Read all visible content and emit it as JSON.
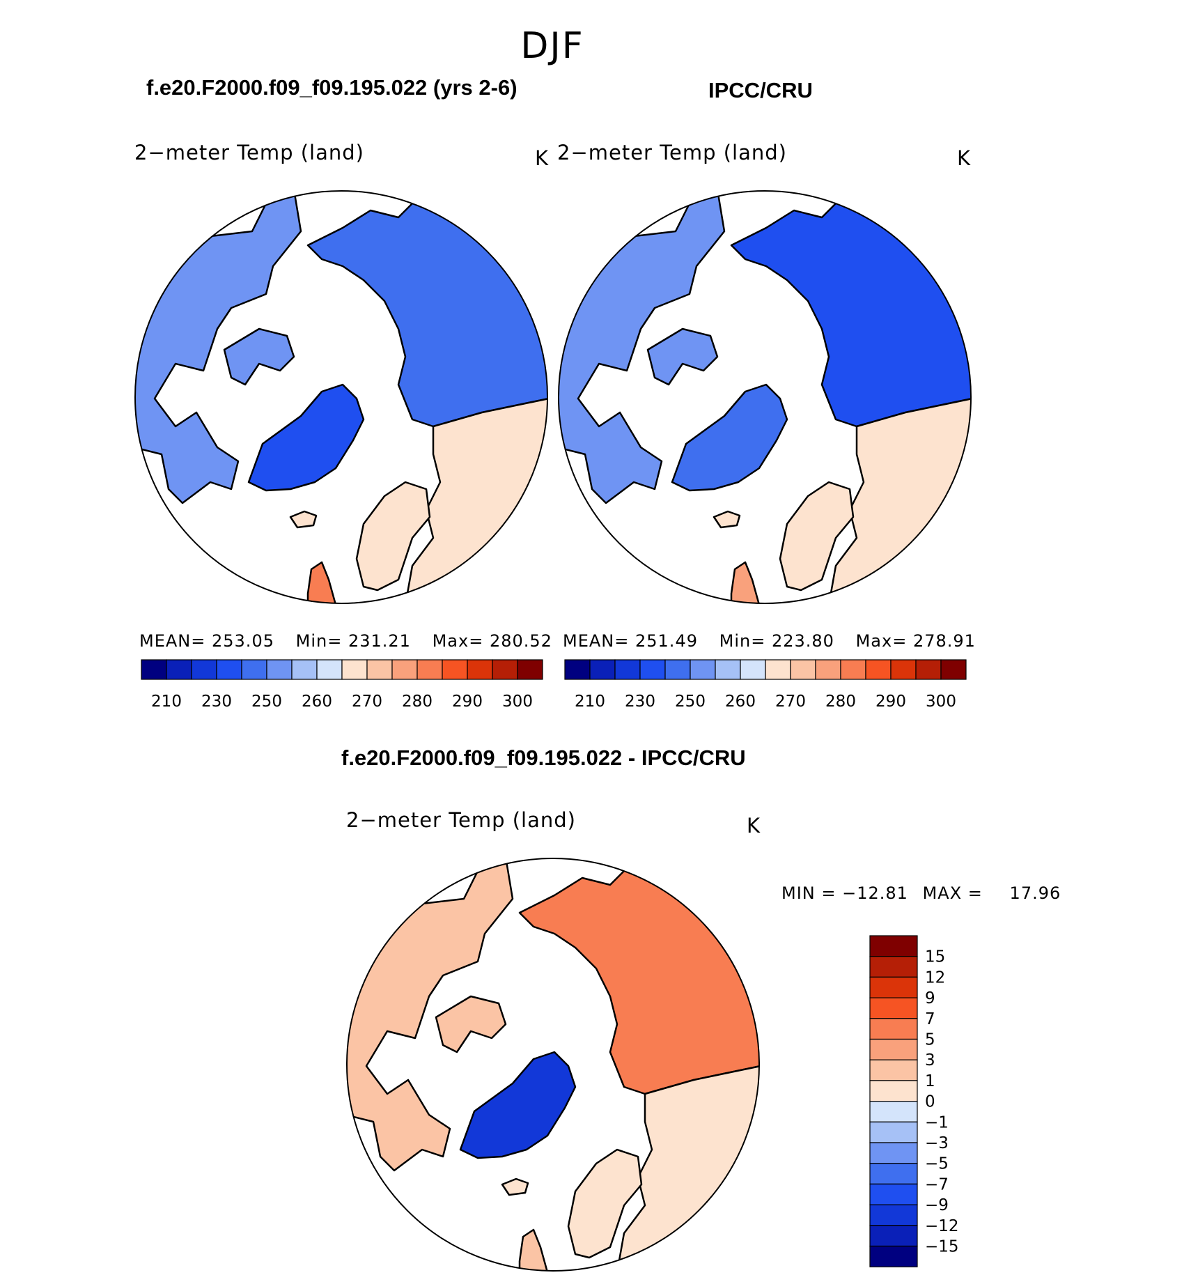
{
  "season_title": "DJF",
  "chart_data": [
    {
      "type": "heatmap",
      "projection": "north polar stereographic",
      "title": "f.e20.F2000.f09_f09.195.022 (yrs 2-6)",
      "variable": "2−meter Temp (land)",
      "units": "K",
      "stats": {
        "mean_label": "MEAN=",
        "mean": "253.05",
        "min_label": "Min=",
        "min": "231.21",
        "max_label": "Max=",
        "max": "280.52"
      },
      "colorbar": {
        "ticks": [
          "210",
          "230",
          "250",
          "260",
          "270",
          "280",
          "290",
          "300"
        ],
        "colors": [
          "#000080",
          "#0a20b8",
          "#1238d8",
          "#1f4ff0",
          "#3f6fef",
          "#6f94f3",
          "#a6c1f6",
          "#d4e4fb",
          "#fde3cf",
          "#fbc4a5",
          "#f9a17c",
          "#f87d52",
          "#f65423",
          "#db3409",
          "#b51f06",
          "#7f0000"
        ]
      },
      "regions": {
        "north_america": "#6f94f3",
        "greenland": "#1f4ff0",
        "siberia": "#3f6fef",
        "europe": "#fde3cf",
        "uk": "#f87d52"
      }
    },
    {
      "type": "heatmap",
      "projection": "north polar stereographic",
      "title": "IPCC/CRU",
      "variable": "2−meter Temp (land)",
      "units": "K",
      "stats": {
        "mean_label": "MEAN=",
        "mean": "251.49",
        "min_label": "Min=",
        "min": "223.80",
        "max_label": "Max=",
        "max": "278.91"
      },
      "colorbar": {
        "ticks": [
          "210",
          "230",
          "250",
          "260",
          "270",
          "280",
          "290",
          "300"
        ],
        "colors": [
          "#000080",
          "#0a20b8",
          "#1238d8",
          "#1f4ff0",
          "#3f6fef",
          "#6f94f3",
          "#a6c1f6",
          "#d4e4fb",
          "#fde3cf",
          "#fbc4a5",
          "#f9a17c",
          "#f87d52",
          "#f65423",
          "#db3409",
          "#b51f06",
          "#7f0000"
        ]
      },
      "regions": {
        "north_america": "#6f94f3",
        "greenland": "#3f6fef",
        "siberia": "#1f4ff0",
        "europe": "#fde3cf",
        "uk": "#f9a17c"
      }
    },
    {
      "type": "heatmap",
      "projection": "north polar stereographic",
      "title": "f.e20.F2000.f09_f09.195.022 - IPCC/CRU",
      "variable": "2−meter Temp (land)",
      "units": "K",
      "stats": {
        "min_label": "MIN =",
        "min": "−12.81",
        "max_label": "MAX =",
        "max": "17.96"
      },
      "colorbar": {
        "ticks": [
          "15",
          "12",
          "9",
          "7",
          "5",
          "3",
          "1",
          "0",
          "−1",
          "−3",
          "−5",
          "−7",
          "−9",
          "−12",
          "−15"
        ],
        "colors": [
          "#7f0000",
          "#b51f06",
          "#db3409",
          "#f65423",
          "#f87d52",
          "#f9a17c",
          "#fbc4a5",
          "#fde3cf",
          "#d4e4fb",
          "#a6c1f6",
          "#6f94f3",
          "#3f6fef",
          "#1f4ff0",
          "#1238d8",
          "#0a20b8",
          "#000080"
        ]
      },
      "regions": {
        "north_america": "#fbc4a5",
        "greenland": "#1238d8",
        "siberia": "#f87d52",
        "europe": "#fde3cf",
        "uk": "#fbc4a5"
      }
    }
  ]
}
